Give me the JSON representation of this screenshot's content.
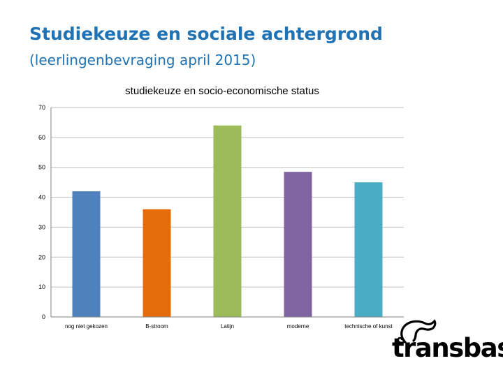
{
  "slide": {
    "title": "Studiekeuze en sociale achtergrond",
    "subtitle": "(leerlingenbevraging april 2015)"
  },
  "colors": {
    "title": "#1F72B3",
    "gridline": "#BFBFBF",
    "axis": "#808080"
  },
  "chart_data": {
    "type": "bar",
    "title": "studiekeuze en socio-economische status",
    "categories": [
      "nog niet gekozen",
      "B-stroom",
      "Latijn",
      "moderne",
      "technische of kunst"
    ],
    "values": [
      42,
      36,
      64,
      48.5,
      45
    ],
    "colors": [
      "#4F81BD",
      "#E46C0A",
      "#9BBB59",
      "#8064A2",
      "#4BACC6"
    ],
    "ylim": [
      0,
      70
    ],
    "yticks": [
      0,
      10,
      20,
      30,
      40,
      50,
      60,
      70
    ],
    "grid": true,
    "legend": "none",
    "xlabel": "",
    "ylabel": ""
  },
  "logo": {
    "text": "transbaso",
    "icon": "chameleon-icon"
  }
}
